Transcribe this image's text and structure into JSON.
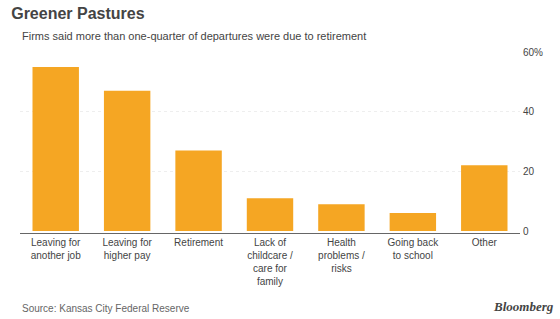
{
  "chart_data": {
    "type": "bar",
    "title": "Greener Pastures",
    "subtitle": "Firms said more than one-quarter of departures were due to retirement",
    "source": "Source: Kansas City Federal Reserve",
    "annotations": [
      "Bloomberg"
    ],
    "categories": [
      "Leaving for\nanother job",
      "Leaving for\nhigher pay",
      "Retirement",
      "Lack of\nchildcare /\ncare for\nfamily",
      "Health\nproblems /\nrisks",
      "Going back\nto school",
      "Other"
    ],
    "values": [
      55,
      47,
      27,
      11,
      9,
      6,
      22
    ],
    "color": "#F5A623",
    "ylim": [
      0,
      60
    ],
    "yticks": [
      0,
      20,
      40,
      {
        "value": 60,
        "label": "60%"
      }
    ],
    "grid": true
  }
}
